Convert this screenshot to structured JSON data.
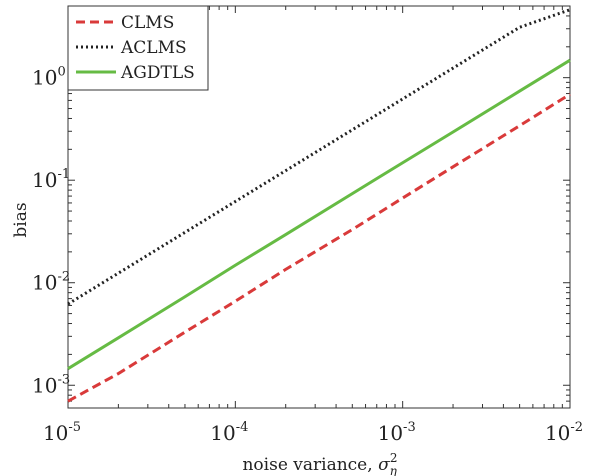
{
  "chart_data": {
    "type": "line",
    "xscale": "log",
    "yscale": "log",
    "xlim": [
      1e-05,
      0.01
    ],
    "ylim": [
      0.0006,
      5
    ],
    "xlabel": "noise variance, ",
    "xlabel_symbol": "σ",
    "xlabel_sub": "η",
    "xlabel_sup": "2",
    "ylabel": "bias",
    "x_ticks": [
      {
        "value": 1e-05,
        "base": "10",
        "exp": "-5"
      },
      {
        "value": 0.0001,
        "base": "10",
        "exp": "-4"
      },
      {
        "value": 0.001,
        "base": "10",
        "exp": "-3"
      },
      {
        "value": 0.01,
        "base": "10",
        "exp": "-2"
      }
    ],
    "y_ticks": [
      {
        "value": 0.001,
        "base": "10",
        "exp": "-3"
      },
      {
        "value": 0.01,
        "base": "10",
        "exp": "-2"
      },
      {
        "value": 0.1,
        "base": "10",
        "exp": "-1"
      },
      {
        "value": 1,
        "base": "10",
        "exp": "0"
      }
    ],
    "grid": false,
    "legend_position": "top-left",
    "series": [
      {
        "name": "CLMS",
        "color": "#d93a3a",
        "style": "dashed",
        "x": [
          1e-05,
          2e-05,
          5e-05,
          0.0001,
          0.0002,
          0.0005,
          0.001,
          0.002,
          0.005,
          0.01
        ],
        "y": [
          0.0007,
          0.0013,
          0.0033,
          0.0066,
          0.0135,
          0.033,
          0.067,
          0.135,
          0.34,
          0.69
        ]
      },
      {
        "name": "ACLMS",
        "color": "#222222",
        "style": "dotted",
        "x": [
          1e-05,
          2e-05,
          5e-05,
          0.0001,
          0.0002,
          0.0005,
          0.001,
          0.002,
          0.005,
          0.01
        ],
        "y": [
          0.0062,
          0.0124,
          0.031,
          0.062,
          0.124,
          0.31,
          0.62,
          1.24,
          3.1,
          4.6
        ]
      },
      {
        "name": "AGDTLS",
        "color": "#66bb44",
        "style": "solid",
        "x": [
          1e-05,
          2e-05,
          5e-05,
          0.0001,
          0.0002,
          0.0005,
          0.001,
          0.002,
          0.005,
          0.01
        ],
        "y": [
          0.00145,
          0.0029,
          0.0073,
          0.0148,
          0.0295,
          0.074,
          0.148,
          0.295,
          0.74,
          1.48
        ]
      }
    ]
  }
}
